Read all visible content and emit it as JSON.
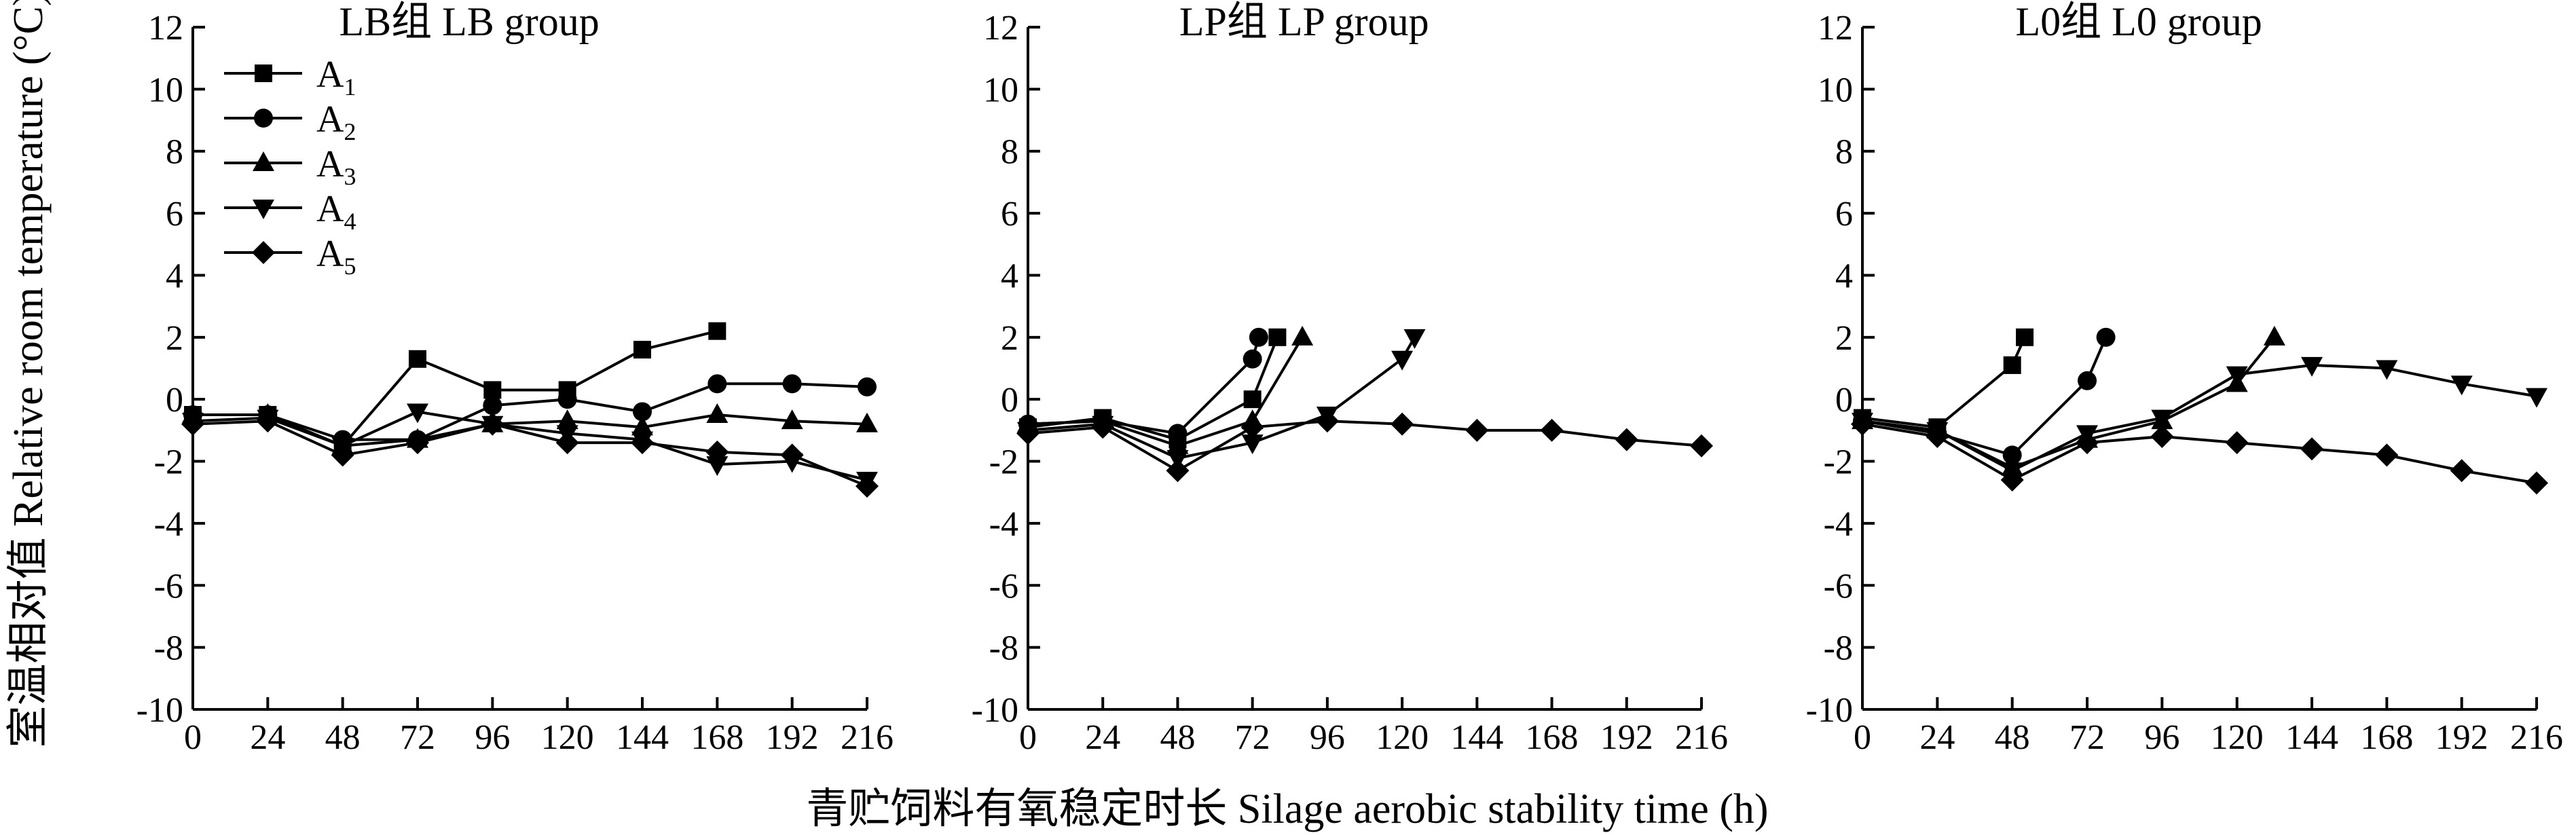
{
  "figure": {
    "ylabel": "室温相对值 Relative room temperature (°C)",
    "xlabel": "青贮饲料有氧稳定时长 Silage aerobic stability time (h)"
  },
  "legend": [
    {
      "label": "A",
      "sub": "1",
      "marker": "square"
    },
    {
      "label": "A",
      "sub": "2",
      "marker": "circle"
    },
    {
      "label": "A",
      "sub": "3",
      "marker": "triangle-up"
    },
    {
      "label": "A",
      "sub": "4",
      "marker": "triangle-down"
    },
    {
      "label": "A",
      "sub": "5",
      "marker": "diamond"
    }
  ],
  "chart_data": [
    {
      "type": "line",
      "title": "LB组 LB group",
      "xlim": [
        0,
        216
      ],
      "ylim": [
        -10,
        12
      ],
      "xticks": [
        0,
        24,
        48,
        72,
        96,
        120,
        144,
        168,
        192,
        216
      ],
      "yticks": [
        -10,
        -8,
        -6,
        -4,
        -2,
        0,
        2,
        4,
        6,
        8,
        10,
        12
      ],
      "series": [
        {
          "name": "A1",
          "marker": "square",
          "x": [
            0,
            24,
            48,
            72,
            96,
            120,
            144,
            168
          ],
          "y": [
            -0.5,
            -0.5,
            -1.5,
            1.3,
            0.3,
            0.3,
            1.6,
            2.2
          ]
        },
        {
          "name": "A2",
          "marker": "circle",
          "x": [
            0,
            24,
            48,
            72,
            96,
            120,
            144,
            168,
            192,
            216
          ],
          "y": [
            -0.5,
            -0.5,
            -1.3,
            -1.3,
            -0.2,
            0.0,
            -0.4,
            0.5,
            0.5,
            0.4
          ]
        },
        {
          "name": "A3",
          "marker": "triangle-up",
          "x": [
            0,
            24,
            48,
            72,
            96,
            120,
            144,
            168,
            192,
            216
          ],
          "y": [
            -0.5,
            -0.5,
            -1.5,
            -1.3,
            -0.8,
            -0.7,
            -0.9,
            -0.5,
            -0.7,
            -0.8
          ]
        },
        {
          "name": "A4",
          "marker": "triangle-down",
          "x": [
            0,
            24,
            48,
            72,
            96,
            120,
            144,
            168,
            192,
            216
          ],
          "y": [
            -0.7,
            -0.6,
            -1.5,
            -0.4,
            -0.8,
            -1.1,
            -1.3,
            -2.1,
            -2.0,
            -2.6
          ]
        },
        {
          "name": "A5",
          "marker": "diamond",
          "x": [
            0,
            24,
            48,
            72,
            96,
            120,
            144,
            168,
            192,
            216
          ],
          "y": [
            -0.8,
            -0.7,
            -1.8,
            -1.4,
            -0.8,
            -1.4,
            -1.4,
            -1.7,
            -1.8,
            -2.8
          ]
        }
      ]
    },
    {
      "type": "line",
      "title": "LP组 LP group",
      "xlim": [
        0,
        216
      ],
      "ylim": [
        -10,
        12
      ],
      "xticks": [
        0,
        24,
        48,
        72,
        96,
        120,
        144,
        168,
        192,
        216
      ],
      "yticks": [
        -10,
        -8,
        -6,
        -4,
        -2,
        0,
        2,
        4,
        6,
        8,
        10,
        12
      ],
      "series": [
        {
          "name": "A1",
          "marker": "square",
          "x": [
            0,
            24,
            48,
            72,
            80
          ],
          "y": [
            -0.9,
            -0.6,
            -1.3,
            0.0,
            2.0
          ]
        },
        {
          "name": "A2",
          "marker": "circle",
          "x": [
            0,
            24,
            48,
            72,
            74
          ],
          "y": [
            -0.8,
            -0.7,
            -1.1,
            1.3,
            2.0
          ]
        },
        {
          "name": "A3",
          "marker": "triangle-up",
          "x": [
            0,
            24,
            48,
            72,
            88
          ],
          "y": [
            -0.8,
            -0.7,
            -1.5,
            -0.7,
            2.0
          ]
        },
        {
          "name": "A4",
          "marker": "triangle-down",
          "x": [
            0,
            24,
            48,
            72,
            96,
            120,
            124
          ],
          "y": [
            -1.0,
            -0.8,
            -1.9,
            -1.4,
            -0.5,
            1.3,
            2.0
          ]
        },
        {
          "name": "A5",
          "marker": "diamond",
          "x": [
            0,
            24,
            48,
            72,
            96,
            120,
            144,
            168,
            192,
            216
          ],
          "y": [
            -1.1,
            -0.9,
            -2.3,
            -0.9,
            -0.7,
            -0.8,
            -1.0,
            -1.0,
            -1.3,
            -1.5
          ]
        }
      ]
    },
    {
      "type": "line",
      "title": "L0组 L0 group",
      "xlim": [
        0,
        216
      ],
      "ylim": [
        -10,
        12
      ],
      "xticks": [
        0,
        24,
        48,
        72,
        96,
        120,
        144,
        168,
        192,
        216
      ],
      "yticks": [
        -10,
        -8,
        -6,
        -4,
        -2,
        0,
        2,
        4,
        6,
        8,
        10,
        12
      ],
      "series": [
        {
          "name": "A1",
          "marker": "square",
          "x": [
            0,
            24,
            48,
            52
          ],
          "y": [
            -0.6,
            -0.9,
            1.1,
            2.0
          ]
        },
        {
          "name": "A2",
          "marker": "circle",
          "x": [
            0,
            24,
            48,
            72,
            78
          ],
          "y": [
            -0.7,
            -1.1,
            -1.8,
            0.6,
            2.0
          ]
        },
        {
          "name": "A3",
          "marker": "triangle-up",
          "x": [
            0,
            24,
            48,
            72,
            96,
            120,
            132
          ],
          "y": [
            -0.7,
            -1.0,
            -2.2,
            -1.3,
            -0.7,
            0.5,
            2.0
          ]
        },
        {
          "name": "A4",
          "marker": "triangle-down",
          "x": [
            0,
            24,
            48,
            72,
            96,
            120,
            144,
            168,
            192,
            216
          ],
          "y": [
            -0.7,
            -1.0,
            -2.3,
            -1.1,
            -0.6,
            0.8,
            1.1,
            1.0,
            0.5,
            0.1
          ]
        },
        {
          "name": "A5",
          "marker": "diamond",
          "x": [
            0,
            24,
            48,
            72,
            96,
            120,
            144,
            168,
            192,
            216
          ],
          "y": [
            -0.8,
            -1.2,
            -2.6,
            -1.4,
            -1.2,
            -1.4,
            -1.6,
            -1.8,
            -2.3,
            -2.7
          ]
        }
      ]
    }
  ]
}
